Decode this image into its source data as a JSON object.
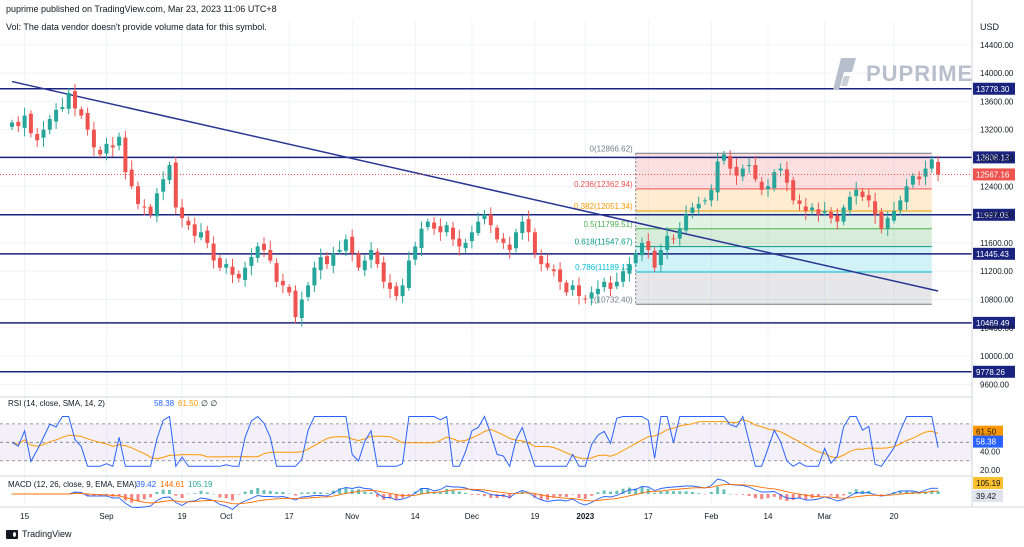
{
  "header": {
    "published": "puprime published on TradingView.com, Mar 23, 2023 11:06 UTC+8",
    "vol_note": "Vol: The data vendor doesn't provide volume data for this symbol.",
    "currency": "USD"
  },
  "brand": {
    "name": "PUPRIME"
  },
  "footer": {
    "logo_text": "TradingView"
  },
  "colors": {
    "up": "#26a69a",
    "down": "#ef5350",
    "level_line": "#1a237e",
    "trend_line": "#283593",
    "rsi_line": "#2962ff",
    "rsi_ma": "#ff9800",
    "macd_line": "#2962ff",
    "signal_line": "#ff6d00"
  },
  "chart_data": {
    "type": "candlestick",
    "y_axis_ticks": [
      14400,
      14000,
      13600,
      13200,
      12800,
      12400,
      12000,
      11600,
      11200,
      10800,
      10400,
      10000,
      9600
    ],
    "ylim": [
      9450,
      14750
    ],
    "x_tick_labels": [
      {
        "label": "15",
        "i": 2
      },
      {
        "label": "Sep",
        "i": 15
      },
      {
        "label": "19",
        "i": 27
      },
      {
        "label": "Oct",
        "i": 34
      },
      {
        "label": "17",
        "i": 44
      },
      {
        "label": "Nov",
        "i": 54
      },
      {
        "label": "14",
        "i": 64
      },
      {
        "label": "Dec",
        "i": 73
      },
      {
        "label": "19",
        "i": 83
      },
      {
        "label": "2023",
        "i": 91
      },
      {
        "label": "17",
        "i": 101
      },
      {
        "label": "Feb",
        "i": 111
      },
      {
        "label": "14",
        "i": 120
      },
      {
        "label": "Mar",
        "i": 129
      },
      {
        "label": "20",
        "i": 140
      }
    ],
    "horizontal_levels": [
      {
        "price": 13778.3,
        "label": "13778.30"
      },
      {
        "price": 12808.13,
        "label": "12808.13"
      },
      {
        "price": 11997.05,
        "label": "11997.05"
      },
      {
        "price": 11445.43,
        "label": "11445.43"
      },
      {
        "price": 10469.49,
        "label": "10469.49"
      },
      {
        "price": 9778.26,
        "label": "9778.26"
      }
    ],
    "current_price": {
      "price": 12567.16,
      "label": "12567.16"
    },
    "trendline": {
      "start": {
        "i": 0,
        "price": 13880
      },
      "end": {
        "i": 147,
        "price": 10920
      }
    },
    "fibonacci": {
      "start_i": 99,
      "end_i": 146,
      "levels": [
        {
          "ratio": 0,
          "price": 12866.62,
          "label": "0(12866.62)"
        },
        {
          "ratio": 0.236,
          "price": 12362.94,
          "label": "0.236(12362.94)"
        },
        {
          "ratio": 0.382,
          "price": 12051.34,
          "label": "0.382(12051.34)"
        },
        {
          "ratio": 0.5,
          "price": 11799.51,
          "label": "0.5(11799.51)"
        },
        {
          "ratio": 0.618,
          "price": 11547.67,
          "label": "0.618(11547.67)"
        },
        {
          "ratio": 0.786,
          "price": 11189.13,
          "label": "0.786(11189.13)"
        },
        {
          "ratio": 1,
          "price": 10732.4,
          "label": "1(10732.40)"
        }
      ]
    },
    "candles_close": [
      13300,
      13250,
      13400,
      13150,
      13050,
      13200,
      13350,
      13480,
      13520,
      13720,
      13500,
      13400,
      13200,
      12950,
      12850,
      13000,
      12950,
      13100,
      12600,
      12400,
      12150,
      12100,
      12000,
      12300,
      12500,
      12700,
      12100,
      11950,
      11850,
      11700,
      11750,
      11600,
      11350,
      11250,
      11300,
      11150,
      11100,
      11250,
      11400,
      11550,
      11500,
      11350,
      11050,
      11000,
      10900,
      10550,
      10800,
      11000,
      11250,
      11400,
      11300,
      11450,
      11500,
      11650,
      11450,
      11250,
      11350,
      11500,
      11300,
      11050,
      10950,
      10850,
      11000,
      11350,
      11550,
      11800,
      11900,
      11800,
      11750,
      11850,
      11650,
      11550,
      11600,
      11750,
      11900,
      12000,
      11850,
      11650,
      11600,
      11500,
      11750,
      11900,
      11750,
      11450,
      11300,
      11250,
      11200,
      11050,
      10900,
      11000,
      10850,
      10800,
      10900,
      10950,
      11050,
      10950,
      11050,
      11200,
      11300,
      11450,
      11600,
      11500,
      11250,
      11500,
      11700,
      11650,
      11800,
      12000,
      12100,
      12150,
      12200,
      12350,
      12750,
      12850,
      12650,
      12550,
      12650,
      12700,
      12500,
      12350,
      12400,
      12600,
      12650,
      12450,
      12200,
      12150,
      12050,
      12100,
      12000,
      12050,
      11950,
      11900,
      12100,
      12250,
      12350,
      12250,
      12200,
      12000,
      11800,
      11950,
      12050,
      12200,
      12400,
      12550,
      12500,
      12650,
      12780,
      12567
    ],
    "rsi": {
      "label": "RSI (14, close, SMA, 14, 2)",
      "value": "58.38",
      "ma_value": "61.50",
      "extra": "∅ ∅",
      "levels": [
        70,
        50,
        30
      ],
      "tick_label": "40.00",
      "tick_label_2": "20.00"
    },
    "macd": {
      "label": "MACD (12, 26, close, 9, EMA, EMA)",
      "macd_value": "39.42",
      "signal_value": "144.61",
      "hist_value": "105.19"
    }
  }
}
